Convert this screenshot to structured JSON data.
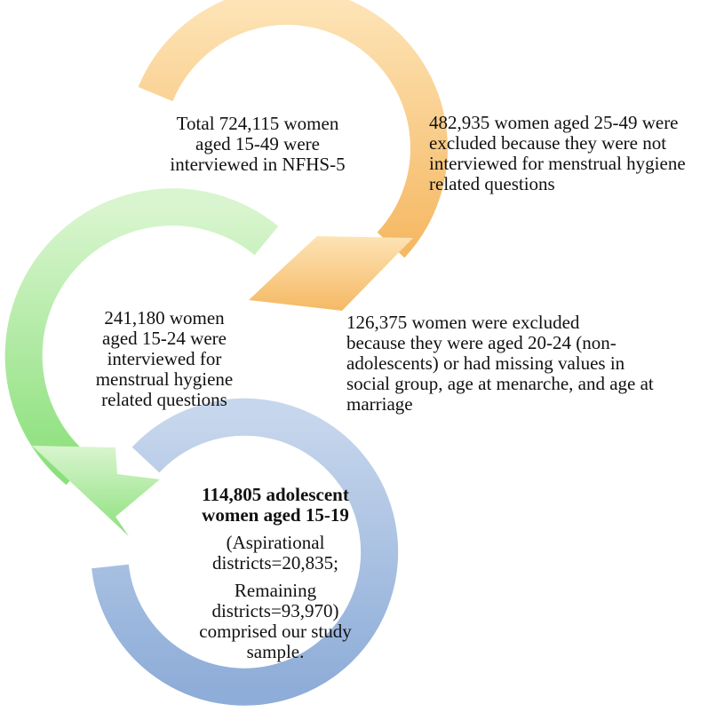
{
  "colors": {
    "orange_light": "#FDE3B5",
    "orange_dark": "#F5B964",
    "green_light": "#D9F5CF",
    "green_dark": "#8BE07B",
    "blue_light": "#C6D6EC",
    "blue_dark": "#8EADD8",
    "text": "#111111"
  },
  "step1": {
    "lines": [
      "Total 724,115  women",
      "aged 15-49  were",
      "interviewed  in  NFHS-5"
    ]
  },
  "exclusion1": {
    "lines": [
      "482,935  women aged 25-49  were",
      "excluded because they were not",
      "interviewed for menstrual hygiene",
      "related  questions"
    ]
  },
  "step2": {
    "lines": [
      "241,180  women",
      "aged 15-24  were",
      "interviewed for",
      "menstrual hygiene",
      "related questions"
    ]
  },
  "exclusion2": {
    "lines": [
      "126,375 women  were excluded",
      "because they  were aged 20-24  (non-",
      "adolescents) or had missing values in",
      "social group, age at menarche, and age at",
      "marriage"
    ]
  },
  "step3": {
    "title_lines": [
      "114,805 adolescent",
      "women aged 15-19"
    ],
    "body_lines": [
      "(Aspirational",
      "districts=20,835;",
      "",
      "Remaining",
      "districts=93,970)",
      "comprised our study",
      "sample."
    ]
  }
}
